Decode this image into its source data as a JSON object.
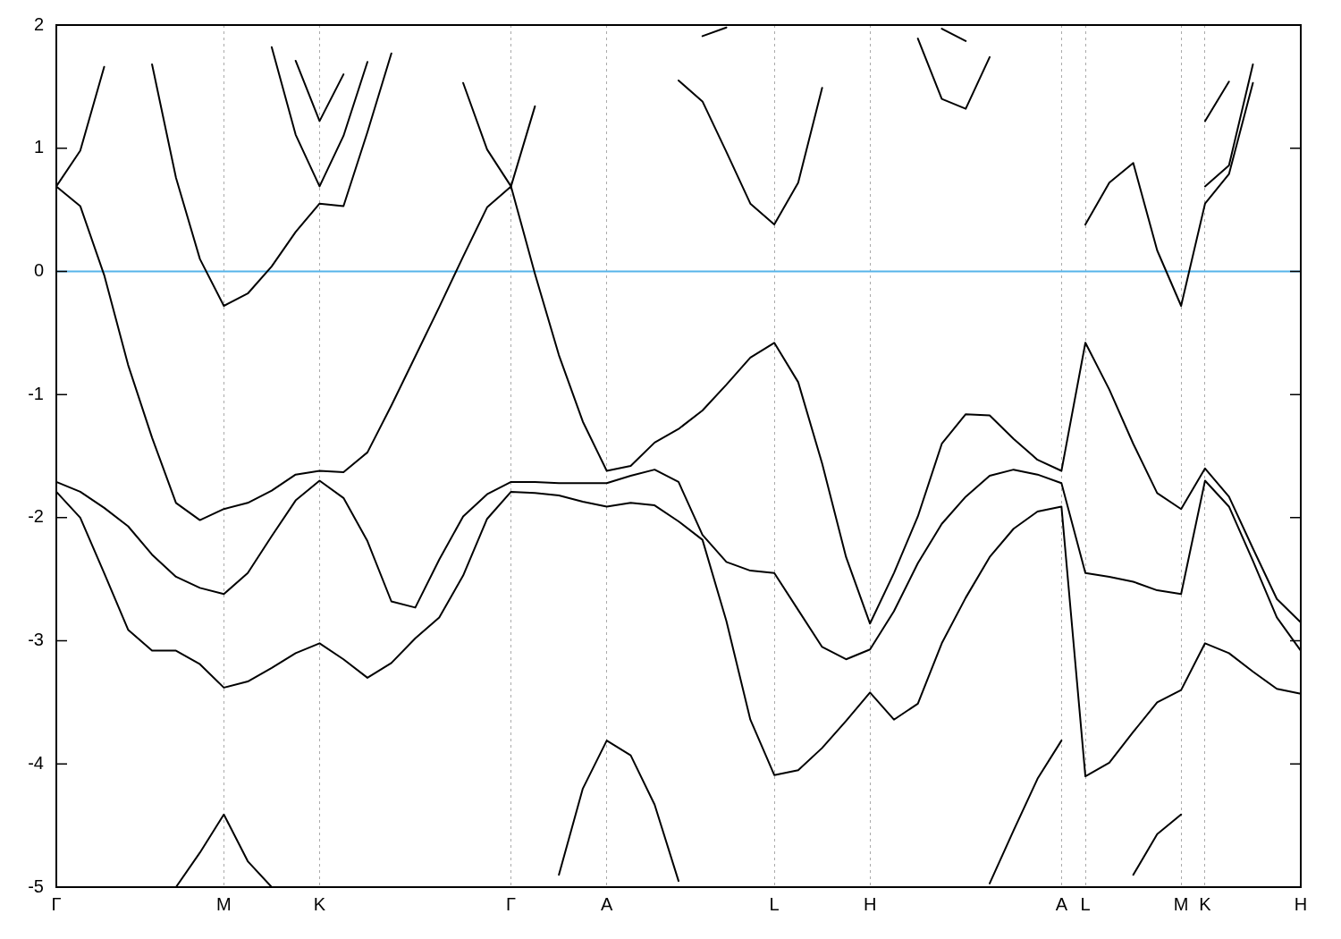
{
  "chart_data": {
    "type": "line",
    "ylim": [
      -5,
      2
    ],
    "categories": [
      "Γ",
      null,
      null,
      null,
      null,
      null,
      null,
      "M",
      null,
      null,
      null,
      "K",
      null,
      null,
      null,
      null,
      null,
      null,
      null,
      "Γ",
      null,
      null,
      null,
      "A",
      null,
      null,
      null,
      null,
      null,
      null,
      "L",
      null,
      null,
      null,
      "H",
      null,
      null,
      null,
      null,
      null,
      null,
      null,
      "A",
      "L",
      null,
      null,
      null,
      "M",
      "K",
      null,
      null,
      null,
      "H"
    ],
    "yticks": [
      -5,
      -4,
      -3,
      -2,
      -1,
      0,
      1,
      2
    ],
    "grid": "x",
    "legend": false,
    "marker": "none",
    "line_style": "solid",
    "ref_lines": [
      {
        "axis": "y",
        "value": 0,
        "color": "#56b4e9"
      }
    ],
    "series": [
      {
        "color": "#000000",
        "values": [
          null,
          null,
          null,
          null,
          null,
          -5,
          -4.72,
          -4.41,
          -4.79,
          -5,
          null,
          null,
          null,
          null,
          null,
          null,
          null,
          null,
          null,
          null,
          null,
          -4.9,
          -4.2,
          -3.81,
          -3.93,
          -4.33,
          -4.95,
          null,
          null,
          null,
          null,
          null,
          null,
          null,
          null,
          null,
          null,
          null,
          null,
          -4.97,
          -4.54,
          -4.12,
          -3.81,
          null,
          null,
          -4.9,
          -4.57,
          -4.41,
          null,
          null,
          null,
          null,
          null
        ]
      },
      {
        "color": "#000000",
        "values": [
          -1.79,
          -2.0,
          -2.45,
          -2.91,
          -3.08,
          -3.08,
          -3.19,
          -3.38,
          -3.33,
          -3.22,
          -3.1,
          -3.02,
          -3.15,
          -3.3,
          -3.18,
          -2.98,
          -2.81,
          -2.47,
          -2.01,
          -1.79,
          -1.8,
          -1.82,
          -1.87,
          -1.91,
          -1.88,
          -1.9,
          -2.03,
          -2.18,
          -2.84,
          -3.64,
          -4.09,
          -4.05,
          -3.87,
          -3.65,
          -3.42,
          -3.64,
          -3.51,
          -3.02,
          -2.65,
          -2.32,
          -2.09,
          -1.95,
          -1.91,
          -4.1,
          -3.99,
          -3.74,
          -3.5,
          -3.4,
          -3.02,
          -3.1,
          -3.25,
          -3.39,
          -3.43
        ]
      },
      {
        "color": "#000000",
        "values": [
          -1.71,
          -1.79,
          -1.92,
          -2.07,
          -2.3,
          -2.48,
          -2.57,
          -2.62,
          -2.45,
          -2.15,
          -1.86,
          -1.7,
          -1.84,
          -2.19,
          -2.68,
          -2.73,
          -2.34,
          -1.99,
          -1.81,
          -1.71,
          -1.71,
          -1.72,
          -1.72,
          -1.72,
          -1.66,
          -1.61,
          -1.71,
          -2.14,
          -2.36,
          -2.43,
          -2.45,
          -2.75,
          -3.05,
          -3.15,
          -3.07,
          -2.76,
          -2.37,
          -2.05,
          -1.83,
          -1.66,
          -1.61,
          -1.65,
          -1.72,
          -2.45,
          -2.48,
          -2.52,
          -2.59,
          -2.62,
          -1.7,
          -1.91,
          -2.35,
          -2.81,
          -3.08
        ]
      },
      {
        "color": "#000000",
        "values": [
          0.69,
          0.53,
          -0.03,
          -0.76,
          -1.35,
          -1.88,
          -2.02,
          -1.93,
          -1.88,
          -1.78,
          -1.65,
          -1.62,
          -1.63,
          -1.47,
          -1.09,
          -0.69,
          -0.29,
          0.12,
          0.52,
          0.69,
          -0.02,
          -0.68,
          -1.22,
          -1.62,
          -1.58,
          -1.39,
          -1.28,
          -1.13,
          -0.92,
          -0.7,
          -0.58,
          -0.9,
          -1.56,
          -2.32,
          -2.86,
          -2.45,
          -1.99,
          -1.4,
          -1.16,
          -1.17,
          -1.36,
          -1.53,
          -1.62,
          -0.58,
          -0.96,
          -1.4,
          -1.8,
          -1.93,
          -1.6,
          -1.83,
          -2.25,
          -2.66,
          -2.85
        ]
      },
      {
        "color": "#000000",
        "values": [
          0.69,
          0.98,
          1.66,
          null,
          1.68,
          0.76,
          0.1,
          -0.28,
          -0.18,
          0.04,
          0.32,
          0.55,
          0.53,
          1.13,
          1.77,
          null,
          null,
          1.53,
          0.99,
          0.69,
          1.34,
          null,
          null,
          null,
          null,
          null,
          1.55,
          1.38,
          0.97,
          0.55,
          0.38,
          0.72,
          1.49,
          null,
          null,
          null,
          1.89,
          1.4,
          1.32,
          1.74,
          null,
          null,
          null,
          0.38,
          0.72,
          0.88,
          0.17,
          -0.28,
          0.55,
          0.79,
          1.53,
          null,
          null
        ]
      },
      {
        "color": "#000000",
        "values": [
          null,
          null,
          null,
          null,
          null,
          null,
          null,
          null,
          null,
          1.82,
          1.11,
          0.69,
          1.1,
          1.7,
          null,
          null,
          null,
          null,
          null,
          null,
          null,
          null,
          null,
          null,
          null,
          null,
          null,
          1.91,
          1.98,
          null,
          null,
          null,
          null,
          null,
          null,
          null,
          null,
          1.97,
          1.87,
          null,
          null,
          null,
          null,
          null,
          null,
          null,
          null,
          null,
          0.69,
          0.86,
          1.68,
          null,
          null
        ]
      },
      {
        "color": "#000000",
        "values": [
          null,
          null,
          null,
          null,
          null,
          null,
          null,
          null,
          null,
          null,
          1.71,
          1.22,
          1.6,
          null,
          null,
          null,
          null,
          null,
          null,
          null,
          null,
          null,
          null,
          null,
          null,
          null,
          null,
          null,
          null,
          null,
          null,
          null,
          null,
          null,
          null,
          null,
          null,
          null,
          null,
          null,
          null,
          null,
          null,
          null,
          null,
          null,
          null,
          null,
          1.22,
          1.54,
          null,
          null,
          null
        ]
      }
    ]
  }
}
